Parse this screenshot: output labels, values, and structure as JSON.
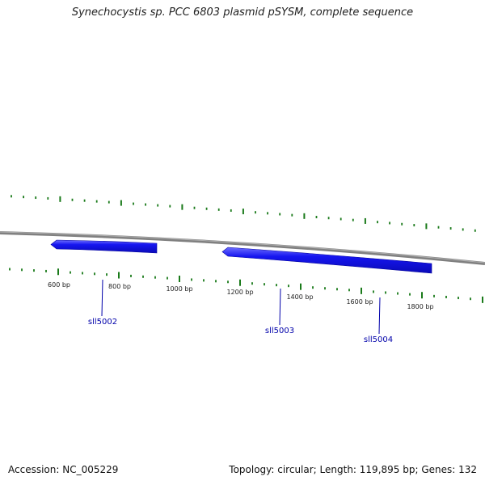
{
  "title": "Synechocystis sp. PCC 6803 plasmid pSYSM, complete sequence",
  "footer": {
    "accession": "Accession: NC_005229",
    "summary": "Topology: circular; Length: 119,895 bp; Genes: 132"
  },
  "colors": {
    "backbone": "#808080",
    "ticks": "#1a7a1a",
    "gene_fill": "#1010ee",
    "gene_label": "#0000aa"
  },
  "ruler": {
    "labels": [
      "600 bp",
      "800 bp",
      "1000 bp",
      "1200 bp",
      "1400 bp",
      "1600 bp",
      "1800 bp"
    ]
  },
  "genes": [
    {
      "name": "sll5002",
      "strand": "-"
    },
    {
      "name": "sll5003",
      "strand": "-"
    },
    {
      "name": "sll5004",
      "strand": "-"
    }
  ]
}
